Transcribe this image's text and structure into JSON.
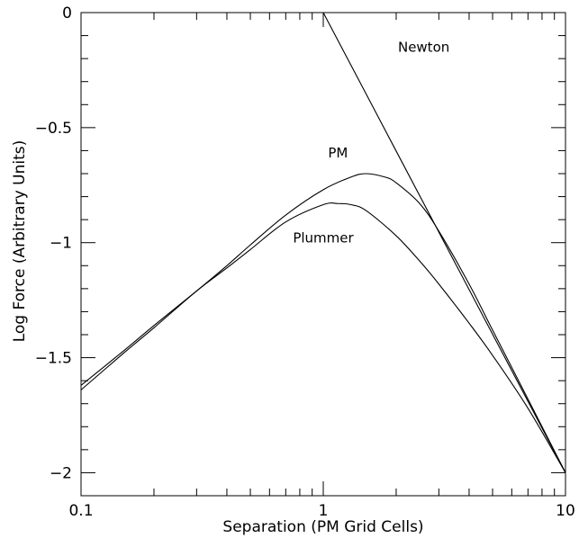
{
  "chart_data": {
    "type": "line",
    "xlabel": "Separation (PM Grid Cells)",
    "ylabel": "Log Force (Arbitrary Units)",
    "xscale": "log",
    "xlim": [
      0.1,
      10
    ],
    "ylim": [
      -2.1,
      0
    ],
    "x_ticks": [
      {
        "value": 0.1,
        "label": "0.1"
      },
      {
        "value": 1,
        "label": "1"
      },
      {
        "value": 10,
        "label": "10"
      }
    ],
    "y_ticks": [
      {
        "value": 0,
        "label": "0"
      },
      {
        "value": -0.5,
        "label": "−0.5"
      },
      {
        "value": -1,
        "label": "−1"
      },
      {
        "value": -1.5,
        "label": "−1.5"
      },
      {
        "value": -2,
        "label": "−2"
      }
    ],
    "grid": false,
    "series": [
      {
        "name": "Newton",
        "x": [
          1.0,
          1.5,
          2.0,
          3.0,
          5.0,
          7.0,
          10.0
        ],
        "y": [
          0.0,
          -0.352,
          -0.602,
          -0.954,
          -1.398,
          -1.69,
          -2.0
        ]
      },
      {
        "name": "PM",
        "x": [
          0.1,
          0.15,
          0.2,
          0.3,
          0.4,
          0.5,
          0.7,
          1.0,
          1.3,
          1.5,
          1.8,
          2.0,
          2.5,
          3.0,
          4.0,
          5.0,
          7.0,
          10.0
        ],
        "y": [
          -1.62,
          -1.47,
          -1.36,
          -1.21,
          -1.1,
          -1.01,
          -0.88,
          -0.77,
          -0.715,
          -0.7,
          -0.715,
          -0.74,
          -0.83,
          -0.95,
          -1.18,
          -1.38,
          -1.68,
          -2.0
        ]
      },
      {
        "name": "Plummer",
        "x": [
          0.1,
          0.15,
          0.2,
          0.3,
          0.4,
          0.5,
          0.7,
          1.0,
          1.15,
          1.3,
          1.5,
          2.0,
          2.5,
          3.0,
          4.0,
          5.0,
          7.0,
          10.0
        ],
        "y": [
          -1.64,
          -1.48,
          -1.37,
          -1.21,
          -1.11,
          -1.03,
          -0.91,
          -0.835,
          -0.83,
          -0.835,
          -0.86,
          -0.97,
          -1.08,
          -1.18,
          -1.35,
          -1.49,
          -1.72,
          -2.0
        ]
      }
    ],
    "annotations": [
      {
        "text": "Newton",
        "x": 2.6,
        "y": -0.17
      },
      {
        "text": "PM",
        "x": 1.15,
        "y": -0.63
      },
      {
        "text": "Plummer",
        "x": 1.0,
        "y": -1.0
      }
    ]
  }
}
